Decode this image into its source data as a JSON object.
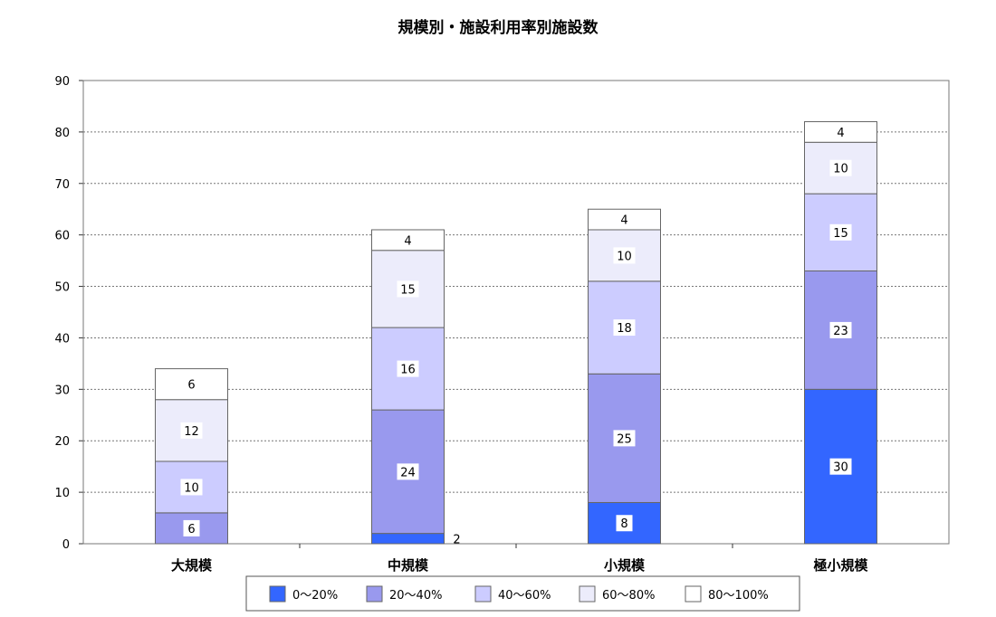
{
  "chart_data": {
    "type": "bar",
    "stacked": true,
    "title": "規模別・施設利用率別施設数",
    "categories": [
      "大規模",
      "中規模",
      "小規模",
      "極小規模"
    ],
    "series": [
      {
        "name": "0～20%",
        "color": "#3366ff",
        "values": [
          0,
          2,
          8,
          30
        ]
      },
      {
        "name": "20～40%",
        "color": "#9999ee",
        "values": [
          6,
          24,
          25,
          23
        ]
      },
      {
        "name": "40～60%",
        "color": "#ccccff",
        "values": [
          10,
          16,
          18,
          15
        ]
      },
      {
        "name": "60～80%",
        "color": "#ececfb",
        "values": [
          12,
          15,
          10,
          10
        ]
      },
      {
        "name": "80～100%",
        "color": "#ffffff",
        "values": [
          6,
          4,
          4,
          4
        ]
      }
    ],
    "data_labels": [
      [
        "",
        "6",
        "10",
        "12",
        "6"
      ],
      [
        "2",
        "24",
        "16",
        "15",
        "4"
      ],
      [
        "8",
        "25",
        "18",
        "10",
        "4"
      ],
      [
        "30",
        "23",
        "15",
        "10",
        "4"
      ]
    ],
    "xlabel": "",
    "ylabel": "",
    "ylim": [
      0,
      90
    ],
    "yticks": [
      0,
      10,
      20,
      30,
      40,
      50,
      60,
      70,
      80,
      90
    ],
    "grid": true,
    "legend_position": "bottom",
    "legend_labels": [
      "0～20%",
      "20～40%",
      "40～60%",
      "60～80%",
      "80～100%"
    ]
  }
}
